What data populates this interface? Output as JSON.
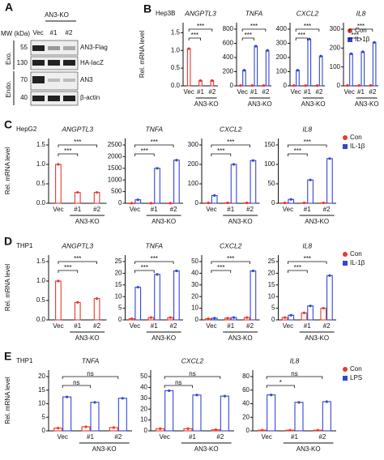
{
  "blot": {
    "label": "A",
    "mw_label": "MW (kDa)",
    "group": "AN3-KO",
    "lanes": [
      "Vec",
      "#1",
      "#2"
    ],
    "sections": [
      "Exo.",
      "Endo."
    ],
    "bands": [
      {
        "mw": "55",
        "name": "AN3-Flag"
      },
      {
        "mw": "130",
        "name": "HA-lacZ"
      },
      {
        "mw": "70",
        "name": "AN3"
      },
      {
        "mw": "40",
        "name": "β-actin"
      }
    ]
  },
  "chart_data": [
    {
      "type": "bar",
      "panel": "B",
      "title": "Hep3B",
      "ylabel": "Rel. mRNA level",
      "group_label": "AN3-KO",
      "categories": [
        "Vec",
        "#1",
        "#2"
      ],
      "legend": [
        {
          "name": "Con",
          "color": "#e8392e"
        },
        {
          "name": "IL-1β",
          "color": "#3346d4"
        }
      ],
      "subplots": [
        {
          "title": "ANGPTL3",
          "ylim": [
            0,
            1.6
          ],
          "yticks": [
            {
              "value": 0,
              "label": "0.0"
            },
            {
              "value": 0.5,
              "label": "0.5"
            },
            {
              "value": 1,
              "label": "1.0"
            },
            {
              "value": 1.5,
              "label": "1.5"
            }
          ],
          "series": [
            {
              "values": [
                1.05,
                0.15,
                0.15
              ]
            },
            {
              "values": [
                null,
                null,
                null
              ]
            }
          ],
          "significance": [
            "***",
            "***"
          ]
        },
        {
          "title": "TNFA",
          "ylim": [
            0,
            800
          ],
          "yticks": [
            0,
            200,
            400,
            600,
            800
          ],
          "series": [
            {
              "values": [
                5,
                5,
                5
              ]
            },
            {
              "values": [
                220,
                560,
                500
              ]
            }
          ],
          "significance": [
            "***",
            "***"
          ]
        },
        {
          "title": "CXCL2",
          "ylim": [
            0,
            400
          ],
          "yticks": [
            0,
            100,
            200,
            300,
            400
          ],
          "series": [
            {
              "values": [
                2,
                2,
                2
              ]
            },
            {
              "values": [
                110,
                330,
                210
              ]
            }
          ],
          "significance": [
            "***",
            "***"
          ]
        },
        {
          "title": "IL8",
          "ylim": [
            0,
            300
          ],
          "yticks": [
            0,
            100,
            200,
            300
          ],
          "series": [
            {
              "values": [
                2,
                2,
                2
              ]
            },
            {
              "values": [
                170,
                180,
                230
              ]
            }
          ],
          "significance": [
            "***",
            "***"
          ]
        }
      ]
    },
    {
      "type": "bar",
      "panel": "C",
      "title": "HepG2",
      "ylabel": "Rel. mRNA level",
      "group_label": "AN3-KO",
      "categories": [
        "Vec",
        "#1",
        "#2"
      ],
      "legend": [
        {
          "name": "Con",
          "color": "#e8392e"
        },
        {
          "name": "IL-1β",
          "color": "#3346d4"
        }
      ],
      "subplots": [
        {
          "title": "ANGPTL3",
          "ylim": [
            0,
            1.5
          ],
          "yticks": [
            {
              "value": 0,
              "label": "0.0"
            },
            {
              "value": 0.5,
              "label": "0.5"
            },
            {
              "value": 1,
              "label": "1.0"
            },
            {
              "value": 1.5,
              "label": "1.5"
            }
          ],
          "series": [
            {
              "values": [
                1.0,
                0.28,
                0.28
              ]
            },
            {
              "values": [
                null,
                null,
                null
              ]
            }
          ],
          "significance": [
            "***",
            "***"
          ]
        },
        {
          "title": "TNFA",
          "ylim": [
            0,
            2500
          ],
          "yticks": [
            0,
            500,
            1000,
            1500,
            2000,
            2500
          ],
          "series": [
            {
              "values": [
                5,
                5,
                5
              ]
            },
            {
              "values": [
                150,
                1500,
                1850
              ]
            }
          ],
          "significance": [
            "***",
            "***"
          ]
        },
        {
          "title": "CXCL2",
          "ylim": [
            0,
            300
          ],
          "yticks": [
            0,
            100,
            200,
            300
          ],
          "series": [
            {
              "values": [
                2,
                2,
                2
              ]
            },
            {
              "values": [
                40,
                200,
                220
              ]
            }
          ],
          "significance": [
            "***",
            "***"
          ]
        },
        {
          "title": "IL8",
          "ylim": [
            0,
            150
          ],
          "yticks": [
            0,
            50,
            100,
            150
          ],
          "series": [
            {
              "values": [
                1,
                1,
                1
              ]
            },
            {
              "values": [
                10,
                60,
                115
              ]
            }
          ],
          "significance": [
            "***",
            "***"
          ]
        }
      ]
    },
    {
      "type": "bar",
      "panel": "D",
      "title": "THP1",
      "ylabel": "Rel. mRNA level",
      "group_label": "AN3-KO",
      "categories": [
        "Vec",
        "#1",
        "#2"
      ],
      "legend": [
        {
          "name": "Con",
          "color": "#e8392e"
        },
        {
          "name": "IL-1β",
          "color": "#3346d4"
        }
      ],
      "subplots": [
        {
          "title": "ANGPTL3",
          "ylim": [
            0,
            1.5
          ],
          "yticks": [
            {
              "value": 0,
              "label": "0.0"
            },
            {
              "value": 0.5,
              "label": "0.5"
            },
            {
              "value": 1,
              "label": "1.0"
            },
            {
              "value": 1.5,
              "label": "1.5"
            }
          ],
          "series": [
            {
              "values": [
                1.0,
                0.45,
                0.55
              ]
            },
            {
              "values": [
                null,
                null,
                null
              ]
            }
          ],
          "significance": [
            "***",
            "***"
          ]
        },
        {
          "title": "TNFA",
          "ylim": [
            0,
            25
          ],
          "yticks": [
            0,
            5,
            10,
            15,
            20,
            25
          ],
          "series": [
            {
              "values": [
                0.5,
                1,
                1
              ]
            },
            {
              "values": [
                14,
                19.5,
                21
              ]
            }
          ],
          "significance": [
            "***",
            "***"
          ]
        },
        {
          "title": "CXCL2",
          "ylim": [
            0,
            50
          ],
          "yticks": [
            0,
            10,
            20,
            30,
            40,
            50
          ],
          "series": [
            {
              "values": [
                1,
                1.5,
                2
              ]
            },
            {
              "values": [
                1.5,
                2,
                42
              ]
            }
          ],
          "significance": [
            "***",
            "***"
          ]
        },
        {
          "title": "IL8",
          "ylim": [
            0,
            25
          ],
          "yticks": [
            0,
            5,
            10,
            15,
            20,
            25
          ],
          "series": [
            {
              "values": [
                1,
                3,
                5
              ]
            },
            {
              "values": [
                2,
                6,
                19
              ]
            }
          ],
          "significance": [
            "***",
            "***"
          ]
        }
      ]
    },
    {
      "type": "bar",
      "panel": "E",
      "title": "THP1",
      "ylabel": "Rel. mRNA level",
      "group_label": "AN3-KO",
      "categories": [
        "Vec",
        "#1",
        "#2"
      ],
      "legend": [
        {
          "name": "Con",
          "color": "#e8392e"
        },
        {
          "name": "LPS",
          "color": "#3346d4"
        }
      ],
      "subplots": [
        {
          "title": "TNFA",
          "ylim": [
            0,
            20
          ],
          "yticks": [
            0,
            5,
            10,
            15,
            20
          ],
          "series": [
            {
              "values": [
                1,
                1.5,
                1.2
              ]
            },
            {
              "values": [
                12.5,
                10.5,
                12
              ]
            }
          ],
          "significance": [
            "ns",
            "ns"
          ]
        },
        {
          "title": "CXCL2",
          "ylim": [
            0,
            50
          ],
          "yticks": [
            0,
            10,
            20,
            30,
            40,
            50
          ],
          "series": [
            {
              "values": [
                2,
                2,
                1
              ]
            },
            {
              "values": [
                37,
                33,
                32
              ]
            }
          ],
          "significance": [
            "ns",
            "ns"
          ]
        },
        {
          "title": "IL8",
          "ylim": [
            0,
            80
          ],
          "yticks": [
            0,
            20,
            40,
            60,
            80
          ],
          "series": [
            {
              "values": [
                1,
                1,
                1
              ]
            },
            {
              "values": [
                53,
                42,
                43
              ]
            }
          ],
          "significance": [
            "*",
            "ns"
          ]
        }
      ]
    }
  ]
}
